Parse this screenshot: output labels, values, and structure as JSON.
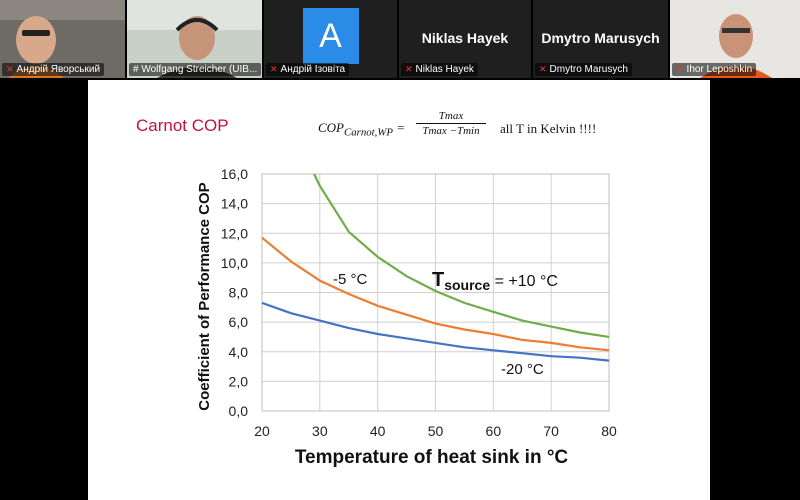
{
  "participants": [
    {
      "name": "Андрій Яворський",
      "display": "video"
    },
    {
      "name": "# Wolfgang Streicher (UIB...",
      "display": "video",
      "active": true
    },
    {
      "name": "Андрій Ізовіта",
      "display": "avatar",
      "initial": "A"
    },
    {
      "name": "Niklas Hayek",
      "display": "name",
      "big_name": "Niklas Hayek"
    },
    {
      "name": "Dmytro Marusych",
      "display": "name",
      "big_name": "Dmytro Marusych"
    },
    {
      "name": "Ihor Leposhkin",
      "display": "video"
    }
  ],
  "slide": {
    "title": "Carnot COP",
    "formula": {
      "lhs": "COP",
      "lhs_sub": "Carnot,WP",
      "eq": "=",
      "numerator": "Tmax",
      "denominator": "Tmax  −Tmin",
      "note": "all T in Kelvin !!!!"
    }
  },
  "chart_data": {
    "type": "line",
    "xlabel": "Temperature of heat sink  in °C",
    "ylabel": "Coefficient of Performance COP",
    "xlim": [
      20,
      80
    ],
    "ylim": [
      0,
      16
    ],
    "x_ticks": [
      "20",
      "30",
      "40",
      "50",
      "60",
      "70",
      "80"
    ],
    "y_ticks": [
      "0,0",
      "2,0",
      "4,0",
      "6,0",
      "8,0",
      "10,0",
      "12,0",
      "14,0",
      "16,0"
    ],
    "grid": true,
    "series": [
      {
        "name": "Tsource = +10 °C",
        "label_main": "T",
        "label_sub": "source",
        "label_rest": " = +10 °C",
        "color": "#70ad47",
        "x": [
          29,
          30,
          35,
          40,
          45,
          50,
          55,
          60,
          65,
          70,
          75,
          80
        ],
        "y": [
          16.0,
          15.2,
          12.1,
          10.4,
          9.1,
          8.1,
          7.3,
          6.7,
          6.1,
          5.7,
          5.3,
          5.0
        ]
      },
      {
        "name": "-5 °C",
        "color": "#ed7d31",
        "x": [
          20,
          25,
          30,
          35,
          40,
          45,
          50,
          55,
          60,
          65,
          70,
          75,
          80
        ],
        "y": [
          11.7,
          10.1,
          8.8,
          7.9,
          7.1,
          6.5,
          5.9,
          5.5,
          5.2,
          4.8,
          4.6,
          4.3,
          4.1
        ]
      },
      {
        "name": "-20 °C",
        "color": "#4472c4",
        "x": [
          20,
          25,
          30,
          35,
          40,
          45,
          50,
          55,
          60,
          65,
          70,
          75,
          80
        ],
        "y": [
          7.3,
          6.6,
          6.1,
          5.6,
          5.2,
          4.9,
          4.6,
          4.3,
          4.1,
          3.9,
          3.7,
          3.6,
          3.4
        ]
      }
    ]
  }
}
